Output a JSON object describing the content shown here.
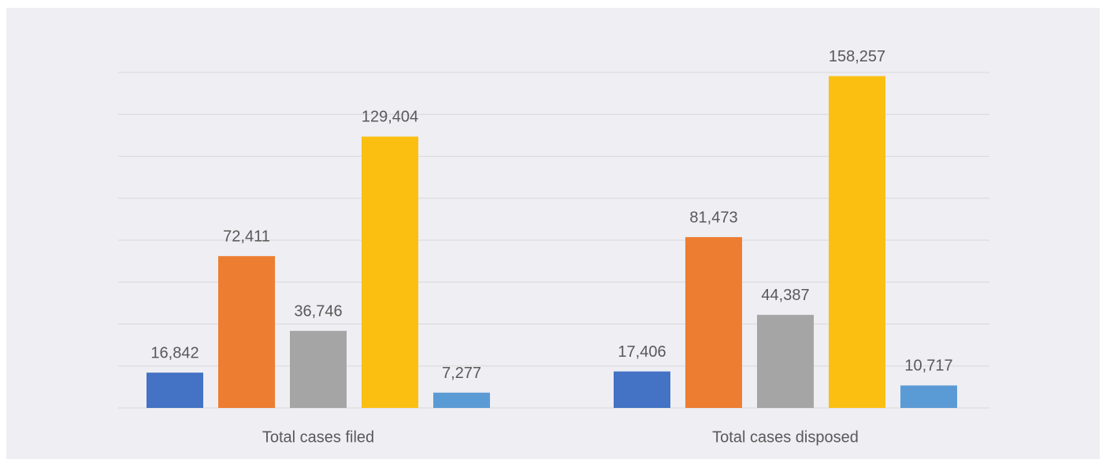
{
  "chart_data": {
    "type": "bar",
    "categories": [
      "Total cases filed",
      "Total cases disposed"
    ],
    "series": [
      {
        "color": "#4472c4",
        "values": [
          16842,
          17406
        ],
        "value_labels": [
          "16,842",
          "17,406"
        ]
      },
      {
        "color": "#ed7d31",
        "values": [
          72411,
          81473
        ],
        "value_labels": [
          "72,411",
          "81,473"
        ]
      },
      {
        "color": "#a5a5a5",
        "values": [
          36746,
          44387
        ],
        "value_labels": [
          "36,746",
          "44,387"
        ]
      },
      {
        "color": "#fbbf12",
        "values": [
          129404,
          158257
        ],
        "value_labels": [
          "129,404",
          "158,257"
        ]
      },
      {
        "color": "#5b9bd5",
        "values": [
          7277,
          10717
        ],
        "value_labels": [
          "7,277",
          "10,717"
        ]
      }
    ],
    "ylim": [
      0,
      160000
    ],
    "yticks": [
      0,
      20000,
      40000,
      60000,
      80000,
      100000,
      120000,
      140000,
      160000
    ],
    "grid": true
  }
}
